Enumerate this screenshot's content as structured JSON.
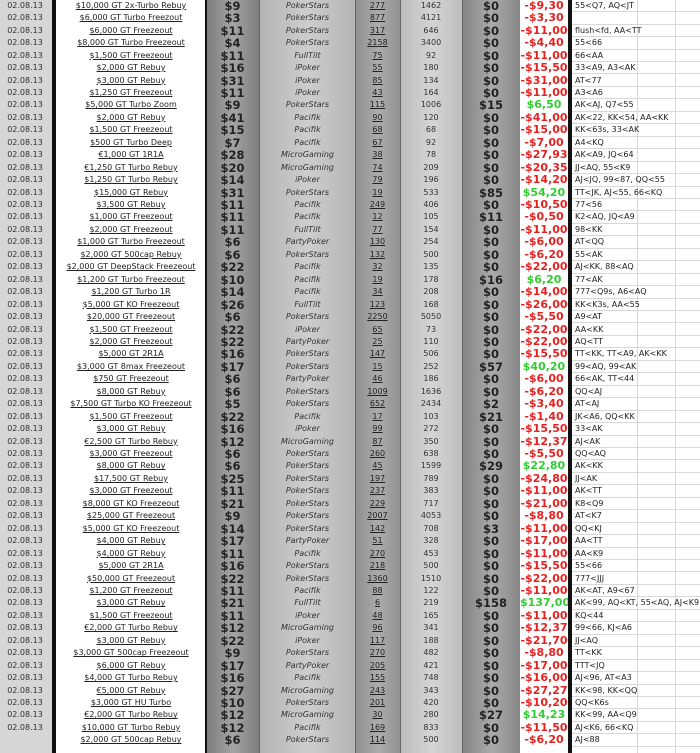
{
  "rows": [
    [
      "02.08.13",
      "$10,000 GT 2x-Turbo Rebuy",
      "$9",
      "PokerStars",
      "277",
      "1462",
      "$0",
      "-$9,30",
      "55<Q7, AQ<JT"
    ],
    [
      "02.08.13",
      "$6,000 GT Turbo Freezout",
      "$3",
      "PokerStars",
      "877",
      "4121",
      "$0",
      "-$3,30",
      ""
    ],
    [
      "02.08.13",
      "$6,000 GT Freezeout",
      "$11",
      "PokerStars",
      "317",
      "646",
      "$0",
      "-$11,00",
      "flush<fd, AA<TT"
    ],
    [
      "02.08.13",
      "$8,000 GT Turbo Freezeout",
      "$4",
      "PokerStars",
      "2158",
      "3400",
      "$0",
      "-$4,40",
      "55<66"
    ],
    [
      "02.08.13",
      "$1,500 GT Freezeout",
      "$11",
      "FullTilt",
      "75",
      "92",
      "$0",
      "-$11,00",
      "66<AA"
    ],
    [
      "02.08.13",
      "$2,000 GT Rebuy",
      "$16",
      "iPoker",
      "55",
      "180",
      "$0",
      "-$15,50",
      "33<A9, A3<AK"
    ],
    [
      "02.08.13",
      "$3,000 GT Rebuy",
      "$31",
      "iPoker",
      "85",
      "134",
      "$0",
      "-$31,00",
      "AT<77"
    ],
    [
      "02.08.13",
      "$1,250 GT Freezeout",
      "$11",
      "iPoker",
      "43",
      "164",
      "$0",
      "-$11,00",
      "A3<A6"
    ],
    [
      "02.08.13",
      "$5,000 GT Turbo Zoom",
      "$9",
      "PokerStars",
      "115",
      "1006",
      "$15",
      "$6,50",
      "AK<AJ, Q7<55"
    ],
    [
      "02.08.13",
      "$2,000 GT Rebuy",
      "$41",
      "Pacifik",
      "90",
      "120",
      "$0",
      "-$41,00",
      "AK<22, KK<54, AA<KK"
    ],
    [
      "02.08.13",
      "$1,500 GT Freezeout",
      "$15",
      "Pacifik",
      "68",
      "68",
      "$0",
      "-$15,00",
      "KK<63s, 33<AK"
    ],
    [
      "02.08.13",
      "$500 GT Turbo Deep",
      "$7",
      "Pacifik",
      "67",
      "92",
      "$0",
      "-$7,00",
      "A4<KQ"
    ],
    [
      "02.08.13",
      "€1,000 GT 1R1A",
      "$28",
      "MicroGaming",
      "38",
      "78",
      "$0",
      "-$27,93",
      "AK<A9, JQ<64"
    ],
    [
      "02.08.13",
      "€1,250 GT Turbo Rebuy",
      "$20",
      "MicroGaming",
      "74",
      "209",
      "$0",
      "-$20,35",
      "JJ<AQ, 55<K9"
    ],
    [
      "02.08.13",
      "$1,250 GT Turbo Rebuy",
      "$14",
      "iPoker",
      "79",
      "196",
      "$0",
      "-$14,20",
      "AJ<JQ, 99<87, QQ<55"
    ],
    [
      "02.08.13",
      "$15,000 GT Rebuy",
      "$31",
      "PokerStars",
      "19",
      "533",
      "$85",
      "$54,20",
      "TT<JK, AJ<55, 66<KQ"
    ],
    [
      "02.08.13",
      "$3,500 GT Rebuy",
      "$11",
      "Pacifik",
      "249",
      "406",
      "$0",
      "-$10,50",
      "77<56"
    ],
    [
      "02.08.13",
      "$1,000 GT Freezeout",
      "$11",
      "Pacifik",
      "12",
      "105",
      "$11",
      "-$0,50",
      "K2<AQ, JQ<A9"
    ],
    [
      "02.08.13",
      "$2,000 GT Freezeout",
      "$11",
      "FullTilt",
      "77",
      "154",
      "$0",
      "-$11,00",
      "98<KK"
    ],
    [
      "02.08.13",
      "$1,000 GT Turbo Freezeout",
      "$6",
      "PartyPoker",
      "130",
      "254",
      "$0",
      "-$6,00",
      "AT<QQ"
    ],
    [
      "02.08.13",
      "$2,000 GT 500cap Rebuy",
      "$6",
      "PokerStars",
      "132",
      "500",
      "$0",
      "-$6,20",
      "55<AK"
    ],
    [
      "02.08.13",
      "$2,000 GT DeepStack Freezeout",
      "$22",
      "Pacifik",
      "32",
      "135",
      "$0",
      "-$22,00",
      "AJ<KK, 88<AQ"
    ],
    [
      "02.08.13",
      "$1,200 GT Turbo Freezeout",
      "$10",
      "Pacifik",
      "19",
      "178",
      "$16",
      "$6,20",
      "77<AK"
    ],
    [
      "02.08.13",
      "$1,200 GT Turbo 1R",
      "$14",
      "Pacifik",
      "34",
      "208",
      "$0",
      "-$14,00",
      "777<Q9s, A6<AQ"
    ],
    [
      "02.08.13",
      "$5,000 GT KO Freezeout",
      "$26",
      "FullTilt",
      "123",
      "168",
      "$0",
      "-$26,00",
      "KK<K3s, AA<55"
    ],
    [
      "02.08.13",
      "$20,000 GT Freezeout",
      "$6",
      "PokerStars",
      "2250",
      "5050",
      "$0",
      "-$5,50",
      "A9<AT"
    ],
    [
      "02.08.13",
      "$1,500 GT Freezeout",
      "$22",
      "iPoker",
      "65",
      "73",
      "$0",
      "-$22,00",
      "AA<KK"
    ],
    [
      "02.08.13",
      "$2,000 GT Freezeout",
      "$22",
      "PartyPoker",
      "25",
      "110",
      "$0",
      "-$22,00",
      "AQ<TT"
    ],
    [
      "02.08.13",
      "$5,000 GT 2R1A",
      "$16",
      "PokerStars",
      "147",
      "506",
      "$0",
      "-$15,50",
      "TT<KK, TT<A9, AK<KK"
    ],
    [
      "02.08.13",
      "$3,000 GT 8max Freezeout",
      "$17",
      "PokerStars",
      "15",
      "252",
      "$57",
      "$40,20",
      "99<AQ, 99<AK"
    ],
    [
      "02.08.13",
      "$750 GT Freezeout",
      "$6",
      "PartyPoker",
      "46",
      "186",
      "$0",
      "-$6,00",
      "66<AK, TT<44"
    ],
    [
      "02.08.13",
      "$8,000 GT Rebuy",
      "$6",
      "PokerStars",
      "1009",
      "1636",
      "$0",
      "-$6,20",
      "QQ<AJ"
    ],
    [
      "02.08.13",
      "$7,500 GT Turbo KO Freezeout",
      "$5",
      "PokerStars",
      "652",
      "2434",
      "$2",
      "-$3,40",
      "AT<AJ"
    ],
    [
      "02.08.13",
      "$1,500 GT Freezeout",
      "$22",
      "Pacifik",
      "17",
      "103",
      "$21",
      "-$1,40",
      "JK<A6, QQ<KK"
    ],
    [
      "02.08.13",
      "$3,000 GT Rebuy",
      "$16",
      "iPoker",
      "99",
      "272",
      "$0",
      "-$15,50",
      "33<AK"
    ],
    [
      "02.08.13",
      "€2,500 GT Turbo Rebuy",
      "$12",
      "MicroGaming",
      "87",
      "350",
      "$0",
      "-$12,37",
      "AJ<AK"
    ],
    [
      "02.08.13",
      "$3,000 GT Freezeout",
      "$6",
      "PokerStars",
      "260",
      "638",
      "$0",
      "-$5,50",
      "QQ<AQ"
    ],
    [
      "02.08.13",
      "$8,000 GT Rebuy",
      "$6",
      "PokerStars",
      "45",
      "1599",
      "$29",
      "$22,80",
      "AK<KK"
    ],
    [
      "02.08.13",
      "$17,500 GT Rebuy",
      "$25",
      "PokerStars",
      "197",
      "789",
      "$0",
      "-$24,80",
      "JJ<AK"
    ],
    [
      "02.08.13",
      "$3,000 GT Freezeout",
      "$11",
      "PokerStars",
      "237",
      "383",
      "$0",
      "-$11,00",
      "AK<TT"
    ],
    [
      "02.08.13",
      "$8,000 GT KO Freezeout",
      "$21",
      "PokerStars",
      "229",
      "717",
      "$0",
      "-$21,00",
      "K8<Q9"
    ],
    [
      "02.08.13",
      "$25,000 GT Freezeout",
      "$9",
      "PokerStars",
      "2007",
      "4053",
      "$0",
      "-$8,80",
      "AT<K7"
    ],
    [
      "02.08.13",
      "$5,000 GT KO Freezeout",
      "$14",
      "PokerStars",
      "142",
      "708",
      "$3",
      "-$11,00",
      "QQ<KJ"
    ],
    [
      "02.08.13",
      "$4,000 GT Rebuy",
      "$17",
      "PartyPoker",
      "51",
      "328",
      "$0",
      "-$17,00",
      "AA<TT"
    ],
    [
      "02.08.13",
      "$4,000 GT Rebuy",
      "$11",
      "Pacifik",
      "270",
      "453",
      "$0",
      "-$11,00",
      "AA<K9"
    ],
    [
      "02.08.13",
      "$5,000 GT 2R1A",
      "$16",
      "PokerStars",
      "218",
      "500",
      "$0",
      "-$15,50",
      "55<66"
    ],
    [
      "02.08.13",
      "$50,000 GT Freezeout",
      "$22",
      "PokerStars",
      "1360",
      "1510",
      "$0",
      "-$22,00",
      "777<JJJ"
    ],
    [
      "02.08.13",
      "$1,200 GT Freezeout",
      "$11",
      "Pacifik",
      "88",
      "122",
      "$0",
      "-$11,00",
      "AK<AT, A9<67"
    ],
    [
      "02.08.13",
      "$3,000 GT Rebuy",
      "$21",
      "FullTilt",
      "6",
      "219",
      "$158",
      "$137,00",
      "AK<99, AQ<KT, 55<AQ, AJ<K9"
    ],
    [
      "02.08.13",
      "$1,500 GT Freezeout",
      "$11",
      "iPoker",
      "48",
      "165",
      "$0",
      "-$11,00",
      "KQ<44"
    ],
    [
      "02.08.13",
      "€2,000 GT Turbo Rebuy",
      "$12",
      "MicroGaming",
      "96",
      "341",
      "$0",
      "-$12,37",
      "99<66, KJ<A6"
    ],
    [
      "02.08.13",
      "$3,000 GT Rebuy",
      "$22",
      "iPoker",
      "117",
      "188",
      "$0",
      "-$21,70",
      "JJ<AQ"
    ],
    [
      "02.08.13",
      "$3,000 GT 500cap Freezeout",
      "$9",
      "PokerStars",
      "270",
      "482",
      "$0",
      "-$8,80",
      "TT<KK"
    ],
    [
      "02.08.13",
      "$6,000 GT Rebuy",
      "$17",
      "PartyPoker",
      "205",
      "421",
      "$0",
      "-$17,00",
      "TTT<JQ"
    ],
    [
      "02.08.13",
      "$4,000 GT Turbo Rebuy",
      "$16",
      "Pacifik",
      "155",
      "748",
      "$0",
      "-$16,00",
      "AJ<96, AT<A3"
    ],
    [
      "02.08.13",
      "€5,000 GT Rebuy",
      "$27",
      "MicroGaming",
      "243",
      "343",
      "$0",
      "-$27,27",
      "KK<98, KK<QQ"
    ],
    [
      "02.08.13",
      "$3,000 GT HU Turbo",
      "$10",
      "PokerStars",
      "201",
      "420",
      "$0",
      "-$10,20",
      "QQ<K6s"
    ],
    [
      "02.08.13",
      "€2,000 GT Turbo Rebuy",
      "$12",
      "MicroGaming",
      "30",
      "280",
      "$27",
      "$14,23",
      "KK<99, AA<Q9"
    ],
    [
      "02.08.13",
      "$10,000 GT Turbo Rebuy",
      "$12",
      "Pacifik",
      "169",
      "833",
      "$0",
      "-$11,50",
      "AJ<K6, 66<KQ"
    ],
    [
      "",
      "$2,000 GT 500cap Rebuy",
      "$6",
      "PokerStars",
      "114",
      "500",
      "$0",
      "-$6,20",
      "AJ<88"
    ]
  ],
  "colors": {
    "loss": "#e52222",
    "win": "#33cc33"
  }
}
